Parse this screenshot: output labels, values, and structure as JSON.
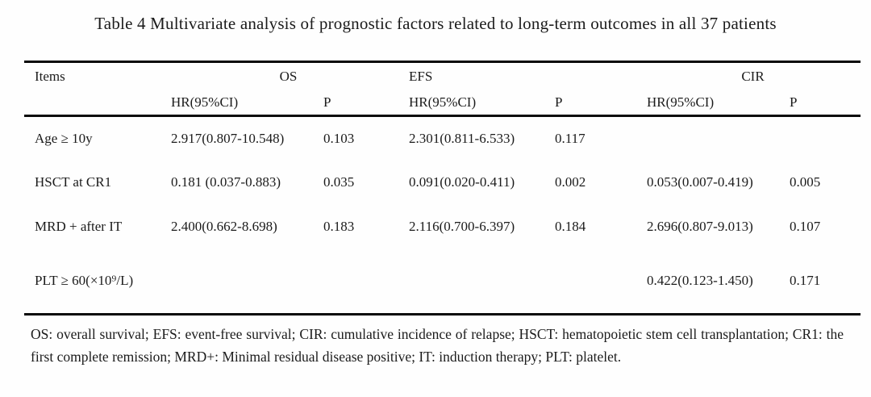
{
  "title": "Table 4 Multivariate analysis of prognostic factors related to long-term outcomes in all 37 patients",
  "table": {
    "items_header": "Items",
    "groups": [
      {
        "label": "OS",
        "hr_label": "HR(95%CI)",
        "p_label": "P"
      },
      {
        "label": "EFS",
        "hr_label": "HR(95%CI)",
        "p_label": "P"
      },
      {
        "label": "CIR",
        "hr_label": "HR(95%CI)",
        "p_label": "P"
      }
    ],
    "rows": [
      {
        "item": "Age ≥ 10y",
        "os_hr": "2.917(0.807-10.548)",
        "os_p": "0.103",
        "efs_hr": "2.301(0.811-6.533)",
        "efs_p": "0.117",
        "cir_hr": "",
        "cir_p": ""
      },
      {
        "item": "HSCT at CR1",
        "os_hr": "0.181 (0.037-0.883)",
        "os_p": "0.035",
        "efs_hr": "0.091(0.020-0.411)",
        "efs_p": "0.002",
        "cir_hr": "0.053(0.007-0.419)",
        "cir_p": "0.005"
      },
      {
        "item": "MRD + after IT",
        "os_hr": "2.400(0.662-8.698)",
        "os_p": "0.183",
        "efs_hr": "2.116(0.700-6.397)",
        "efs_p": "0.184",
        "cir_hr": "2.696(0.807-9.013)",
        "cir_p": "0.107"
      },
      {
        "item": "PLT ≥ 60(×10⁹/L)",
        "os_hr": "",
        "os_p": "",
        "efs_hr": "",
        "efs_p": "",
        "cir_hr": "0.422(0.123-1.450)",
        "cir_p": "0.171"
      }
    ]
  },
  "footnote": "OS: overall survival; EFS: event-free survival; CIR: cumulative incidence of relapse; HSCT: hematopoietic stem cell transplantation; CR1: the first complete remission; MRD+: Minimal residual disease positive; IT: induction therapy; PLT: platelet.",
  "colors": {
    "text": "#1b1b1b",
    "rule": "#0a0a0a",
    "background": "#fefefe"
  }
}
